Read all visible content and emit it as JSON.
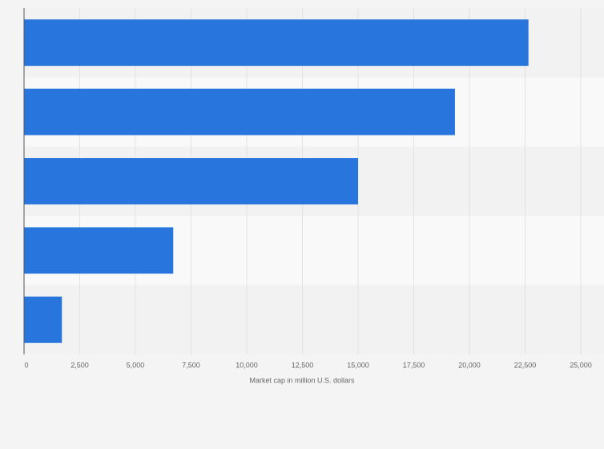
{
  "chart_data": {
    "type": "bar",
    "orientation": "horizontal",
    "x_label": "Market cap in million U.S. dollars",
    "categories": [
      null,
      null,
      null,
      null,
      null
    ],
    "values": [
      22650,
      19350,
      15000,
      6700,
      1700
    ],
    "color": "#2876dd",
    "xlim": [
      0,
      25000
    ],
    "xticks": [
      0,
      {
        "value": 2500,
        "label": "2,500"
      },
      {
        "value": 5000,
        "label": "5,000"
      },
      {
        "value": 7500,
        "label": "7,500"
      },
      {
        "value": 10000,
        "label": "10,000"
      },
      {
        "value": 12500,
        "label": "12,500"
      },
      {
        "value": 15000,
        "label": "15,000"
      },
      {
        "value": 17500,
        "label": "17,500"
      },
      {
        "value": 20000,
        "label": "20,000"
      },
      {
        "value": 22500,
        "label": "22,500"
      },
      {
        "value": 25000,
        "label": "25,000"
      }
    ],
    "grid": true
  }
}
